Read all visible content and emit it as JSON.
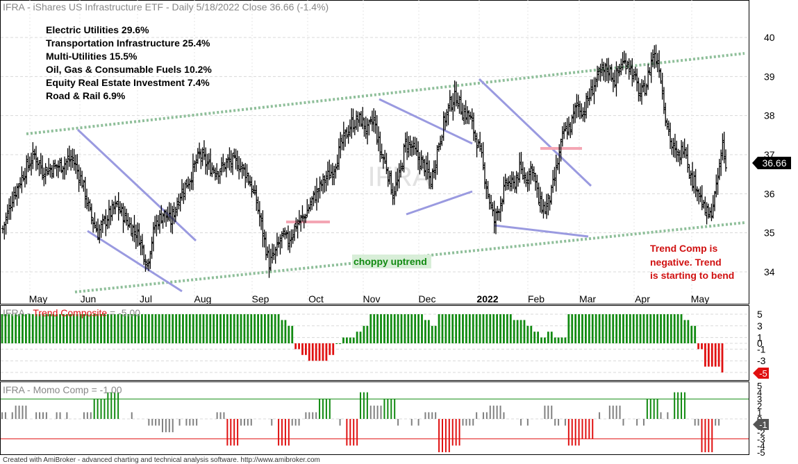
{
  "header": {
    "title": "IFRA - iShares US Infrastructure ETF - Daily 5/18/2022 Close 36.66 (-1.4%)"
  },
  "sectors": [
    "Electric Utilities 29.6%",
    "Transportation Infrastructure 25.4%",
    "Multi-Utilities 15.5%",
    "Oil, Gas & Consumable Fuels 10.2%",
    "Equity Real Estate Investment 7.4%",
    "Road & Rail 6.9%"
  ],
  "annotations": {
    "watermark": "IFRA",
    "choppy": "choppy uptrend",
    "trend_comp_lines": [
      "Trend Comp is",
      "negative. Trend",
      "is starting to bend"
    ],
    "price_label": "36.66"
  },
  "footer": {
    "credit": "Created with AmiBroker - advanced charting and technical analysis software. http://www.amibroker.com"
  },
  "colors": {
    "bar": "#000000",
    "channel": "#8fbf9a",
    "triangle": "#9a9ae0",
    "resistance": "#f4a6b4",
    "bull": "#118a11",
    "bear": "#e01010",
    "neutral": "#808080",
    "note": "#d01010"
  },
  "chart_data": [
    {
      "type": "ohlc",
      "name": "price",
      "x_labels": [
        "May",
        "Jun",
        "Jul",
        "Aug",
        "Sep",
        "Oct",
        "Nov",
        "Dec",
        "2022",
        "Feb",
        "Mar",
        "Apr",
        "May"
      ],
      "y_ticks": [
        34,
        35,
        36,
        37,
        38,
        39,
        40
      ],
      "ylim": [
        33.6,
        40.5
      ],
      "approx_close_path": [
        [
          0,
          35.1
        ],
        [
          6,
          35.9
        ],
        [
          14,
          36.6
        ],
        [
          20,
          37.0
        ],
        [
          25,
          36.6
        ],
        [
          35,
          36.7
        ],
        [
          44,
          36.9
        ],
        [
          50,
          36.3
        ],
        [
          55,
          35.5
        ],
        [
          60,
          35.0
        ],
        [
          66,
          35.4
        ],
        [
          72,
          35.7
        ],
        [
          80,
          35.2
        ],
        [
          86,
          34.9
        ],
        [
          91,
          34.2
        ],
        [
          96,
          35.2
        ],
        [
          101,
          35.5
        ],
        [
          106,
          35.3
        ],
        [
          112,
          36.0
        ],
        [
          118,
          36.4
        ],
        [
          124,
          37.0
        ],
        [
          130,
          36.7
        ],
        [
          136,
          36.6
        ],
        [
          142,
          36.8
        ],
        [
          148,
          36.8
        ],
        [
          154,
          36.5
        ],
        [
          160,
          35.8
        ],
        [
          164,
          35.0
        ],
        [
          168,
          34.2
        ],
        [
          172,
          34.5
        ],
        [
          176,
          34.9
        ],
        [
          180,
          34.8
        ],
        [
          185,
          35.2
        ],
        [
          190,
          35.4
        ],
        [
          196,
          35.9
        ],
        [
          202,
          36.3
        ],
        [
          208,
          36.6
        ],
        [
          214,
          37.3
        ],
        [
          220,
          37.8
        ],
        [
          226,
          37.9
        ],
        [
          230,
          37.6
        ],
        [
          234,
          37.9
        ],
        [
          238,
          37.1
        ],
        [
          242,
          36.7
        ],
        [
          246,
          36.0
        ],
        [
          250,
          36.4
        ],
        [
          254,
          37.3
        ],
        [
          258,
          37.2
        ],
        [
          262,
          36.9
        ],
        [
          266,
          36.7
        ],
        [
          270,
          36.3
        ],
        [
          274,
          37.1
        ],
        [
          278,
          37.8
        ],
        [
          282,
          38.3
        ],
        [
          286,
          38.5
        ],
        [
          290,
          38.1
        ],
        [
          294,
          38.0
        ],
        [
          298,
          37.5
        ],
        [
          302,
          36.9
        ],
        [
          306,
          36.0
        ],
        [
          310,
          35.3
        ],
        [
          314,
          35.8
        ],
        [
          318,
          36.3
        ],
        [
          322,
          36.2
        ],
        [
          326,
          36.6
        ],
        [
          330,
          36.4
        ],
        [
          334,
          36.7
        ],
        [
          338,
          35.8
        ],
        [
          342,
          35.6
        ],
        [
          346,
          36.0
        ],
        [
          350,
          36.8
        ],
        [
          354,
          37.6
        ],
        [
          358,
          37.7
        ],
        [
          362,
          38.3
        ],
        [
          366,
          38.1
        ],
        [
          370,
          38.5
        ],
        [
          374,
          38.9
        ],
        [
          378,
          39.1
        ],
        [
          382,
          39.2
        ],
        [
          386,
          38.9
        ],
        [
          390,
          39.3
        ],
        [
          394,
          39.4
        ],
        [
          398,
          39.0
        ],
        [
          402,
          38.5
        ],
        [
          406,
          38.8
        ],
        [
          410,
          39.6
        ],
        [
          414,
          39.3
        ],
        [
          418,
          38.0
        ],
        [
          422,
          37.2
        ],
        [
          426,
          36.9
        ],
        [
          430,
          37.3
        ],
        [
          434,
          36.4
        ],
        [
          438,
          36.2
        ],
        [
          442,
          35.6
        ],
        [
          446,
          35.4
        ],
        [
          450,
          36.1
        ],
        [
          454,
          37.3
        ],
        [
          456,
          36.66
        ]
      ],
      "n_bars": 457,
      "last_close": 36.66
    },
    {
      "type": "bar",
      "name": "Trend Composite",
      "label_prefix": "IFRA - ",
      "label_name": "Trend Composite",
      "label_value": " = -5.00",
      "y_ticks": [
        5,
        3,
        1,
        0,
        -1,
        -3,
        -5
      ],
      "ylim": [
        -6,
        6
      ],
      "segments": [
        [
          0,
          5
        ],
        [
          80,
          5
        ],
        [
          82,
          4
        ],
        [
          84,
          3
        ],
        [
          86,
          -1
        ],
        [
          88,
          -2
        ],
        [
          90,
          -3
        ],
        [
          96,
          -2
        ],
        [
          98,
          0
        ],
        [
          100,
          1
        ],
        [
          104,
          2
        ],
        [
          106,
          3
        ],
        [
          108,
          5
        ],
        [
          124,
          4
        ],
        [
          126,
          3
        ],
        [
          128,
          5
        ],
        [
          150,
          4
        ],
        [
          154,
          3
        ],
        [
          156,
          2
        ],
        [
          158,
          1
        ],
        [
          160,
          2
        ],
        [
          162,
          1
        ],
        [
          166,
          5
        ],
        [
          200,
          4
        ],
        [
          202,
          3
        ],
        [
          204,
          -1
        ],
        [
          206,
          -4
        ],
        [
          211,
          -5
        ]
      ],
      "last_value": -5
    },
    {
      "type": "bar",
      "name": "Momo Comp",
      "label_prefix": "IFRA - ",
      "label_name": "Momo Comp",
      "label_value": " = -1.00",
      "y_ticks": [
        5,
        4,
        3,
        2,
        1,
        0,
        -1,
        -2,
        -3,
        -4,
        -5
      ],
      "ylim": [
        -5,
        5
      ],
      "values_sample": [
        1,
        2,
        1,
        1,
        1,
        0,
        1,
        3,
        4,
        1,
        0,
        -1,
        -2,
        -1,
        -1,
        0,
        1,
        -4,
        -1,
        0,
        -1,
        -4,
        -1,
        1,
        3,
        -1,
        -4,
        4,
        2,
        3,
        -1,
        -1,
        1,
        -5,
        -4,
        -1,
        1,
        2,
        1,
        -1,
        0,
        2,
        -1,
        -4,
        -3,
        1,
        2,
        -1,
        -1,
        3,
        1,
        4,
        -1,
        -5,
        -1
      ],
      "thresholds": [
        3,
        -3
      ],
      "last_value": -1
    }
  ]
}
